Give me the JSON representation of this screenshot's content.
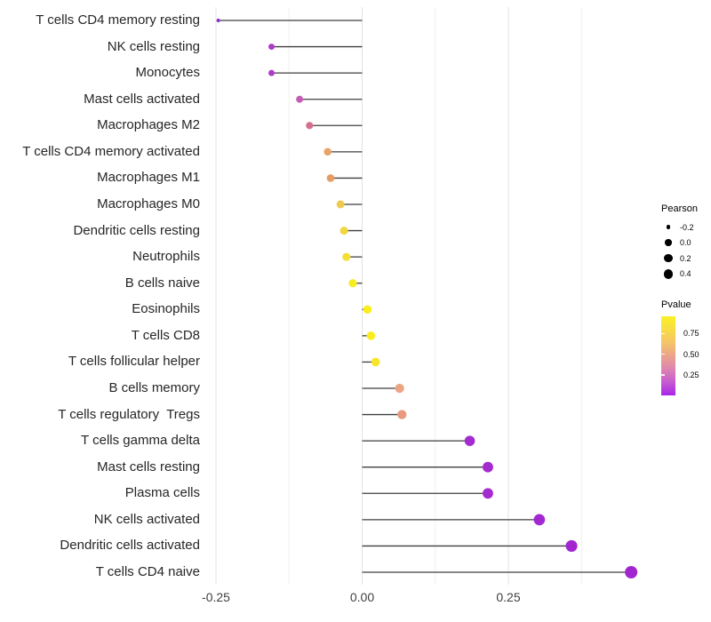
{
  "chart_data": {
    "type": "lollipop",
    "title": "",
    "xlabel": "",
    "ylabel": "",
    "x_axis": {
      "tick_labels": [
        "-0.25",
        "0.00",
        "0.25"
      ],
      "tick_values": [
        -0.25,
        0.0,
        0.25
      ],
      "minor_gridline_values": [
        -0.125,
        0.125,
        0.375
      ],
      "range": [
        -0.28,
        0.5
      ]
    },
    "points": [
      {
        "category": "T cells CD4 memory resting",
        "pearson": -0.246,
        "pvalue": 0.1,
        "color": "#9030D2"
      },
      {
        "category": "NK cells resting",
        "pearson": -0.155,
        "pvalue": 0.18,
        "color": "#AE3AC6"
      },
      {
        "category": "Monocytes",
        "pearson": -0.155,
        "pvalue": 0.18,
        "color": "#AE3AC6"
      },
      {
        "category": "Mast cells activated",
        "pearson": -0.107,
        "pvalue": 0.3,
        "color": "#C55CB5"
      },
      {
        "category": "Macrophages M2",
        "pearson": -0.09,
        "pvalue": 0.4,
        "color": "#D4708E"
      },
      {
        "category": "T cells CD4 memory activated",
        "pearson": -0.059,
        "pvalue": 0.57,
        "color": "#E9A368"
      },
      {
        "category": "Macrophages M1",
        "pearson": -0.054,
        "pvalue": 0.58,
        "color": "#E79C63"
      },
      {
        "category": "Macrophages M0",
        "pearson": -0.037,
        "pvalue": 0.74,
        "color": "#EFCB4D"
      },
      {
        "category": "Dendritic cells resting",
        "pearson": -0.031,
        "pvalue": 0.79,
        "color": "#F2D63F"
      },
      {
        "category": "Neutrophils",
        "pearson": -0.027,
        "pvalue": 0.84,
        "color": "#F4E033"
      },
      {
        "category": "B cells naive",
        "pearson": -0.016,
        "pvalue": 0.9,
        "color": "#F8EC21"
      },
      {
        "category": "Eosinophils",
        "pearson": 0.009,
        "pvalue": 0.93,
        "color": "#FAEE1C"
      },
      {
        "category": "T cells CD8",
        "pearson": 0.015,
        "pvalue": 0.91,
        "color": "#F9ED1F"
      },
      {
        "category": "T cells follicular helper",
        "pearson": 0.023,
        "pvalue": 0.82,
        "color": "#F6E52A"
      },
      {
        "category": "B cells memory",
        "pearson": 0.064,
        "pvalue": 0.55,
        "color": "#ECA584"
      },
      {
        "category": "T cells regulatory  Tregs",
        "pearson": 0.068,
        "pvalue": 0.52,
        "color": "#E8997E"
      },
      {
        "category": "T cells gamma delta",
        "pearson": 0.184,
        "pvalue": 0.08,
        "color": "#A32BD0"
      },
      {
        "category": "Mast cells resting",
        "pearson": 0.215,
        "pvalue": 0.07,
        "color": "#A32BD0"
      },
      {
        "category": "Plasma cells",
        "pearson": 0.215,
        "pvalue": 0.07,
        "color": "#A32BD0"
      },
      {
        "category": "NK cells activated",
        "pearson": 0.303,
        "pvalue": 0.06,
        "color": "#A229D2"
      },
      {
        "category": "Dendritic cells activated",
        "pearson": 0.358,
        "pvalue": 0.05,
        "color": "#A126D0"
      },
      {
        "category": "T cells CD4 naive",
        "pearson": 0.46,
        "pvalue": 0.05,
        "color": "#A126D0"
      }
    ],
    "legends": {
      "size": {
        "title": "Pearson",
        "entries": [
          {
            "label": "-0.2",
            "value": -0.2
          },
          {
            "label": "0.0",
            "value": 0.0
          },
          {
            "label": "0.2",
            "value": 0.2
          },
          {
            "label": "0.4",
            "value": 0.4
          }
        ],
        "dot_color": "#000000"
      },
      "color": {
        "title": "Pvalue",
        "tick_labels": [
          "0.75",
          "0.50",
          "0.25"
        ],
        "tick_values": [
          0.75,
          0.5,
          0.25
        ],
        "gradient_top_to_bottom": [
          "#FBF125",
          "#F8DC45",
          "#F4C468",
          "#ECA38C",
          "#DD85B0",
          "#C75AD0",
          "#A825E8"
        ],
        "value_range_top_to_bottom": [
          0.96,
          0.0
        ]
      }
    },
    "style": {
      "stem_color": "#3F3F3F",
      "major_gridline_color": "#E3E3E3",
      "minor_gridline_color": "#F0F0F0",
      "background": "#FFFFFF"
    },
    "layout_hints": {
      "grid": "vertical-only",
      "legend_position": "right"
    }
  }
}
